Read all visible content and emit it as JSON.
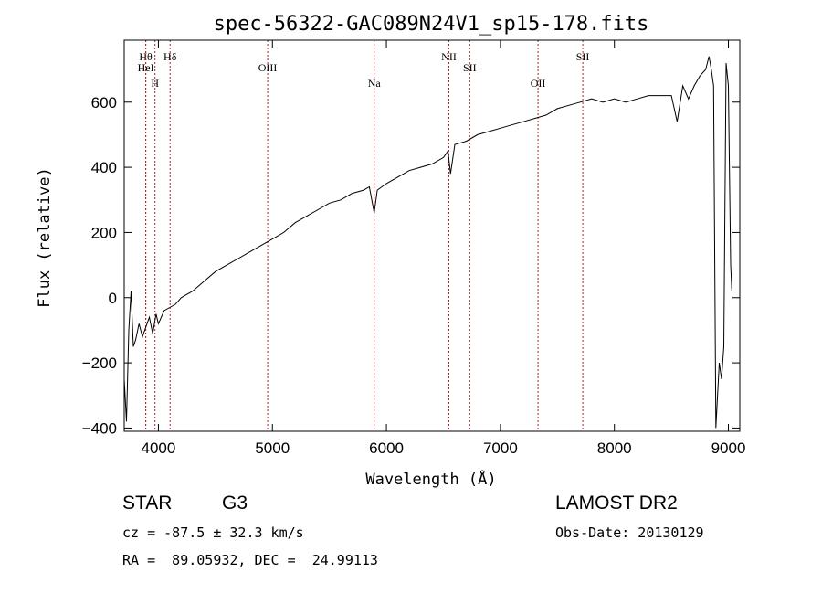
{
  "chart_data": {
    "type": "line",
    "title": "spec-56322-GAC089N24V1_sp15-178.fits",
    "xlabel": "Wavelength (Å)",
    "ylabel": "Flux (relative)",
    "xlim": [
      3700,
      9100
    ],
    "ylim": [
      -410,
      790
    ],
    "x_ticks": [
      4000,
      5000,
      6000,
      7000,
      8000,
      9000
    ],
    "y_ticks": [
      -400,
      -200,
      0,
      200,
      400,
      600
    ],
    "grid": false,
    "line_color": "#000000",
    "marker_color": "#b22222",
    "spectral_lines": [
      {
        "label": "Hθ",
        "wavelength": 3889
      },
      {
        "label": "HeI",
        "wavelength": 3889
      },
      {
        "label": "H",
        "wavelength": 3970
      },
      {
        "label": "Hδ",
        "wavelength": 4102
      },
      {
        "label": "OIII",
        "wavelength": 4959
      },
      {
        "label": "Na",
        "wavelength": 5893
      },
      {
        "label": "NII",
        "wavelength": 6548
      },
      {
        "label": "SII",
        "wavelength": 6731
      },
      {
        "label": "OII",
        "wavelength": 7330
      },
      {
        "label": "SII",
        "wavelength": 7723
      }
    ],
    "series": [
      {
        "x": [
          3700,
          3720,
          3740,
          3760,
          3780,
          3800,
          3830,
          3860,
          3890,
          3920,
          3950,
          3980,
          4000,
          4050,
          4100,
          4150,
          4200,
          4250,
          4300,
          4400,
          4500,
          4600,
          4700,
          4800,
          4900,
          5000,
          5100,
          5200,
          5300,
          5400,
          5500,
          5600,
          5700,
          5800,
          5850,
          5893,
          5920,
          6000,
          6100,
          6200,
          6300,
          6400,
          6500,
          6540,
          6563,
          6600,
          6700,
          6800,
          6900,
          7000,
          7100,
          7200,
          7300,
          7400,
          7500,
          7600,
          7700,
          7800,
          7900,
          8000,
          8100,
          8200,
          8300,
          8400,
          8500,
          8550,
          8600,
          8650,
          8700,
          8750,
          8800,
          8830,
          8850,
          8870,
          8890,
          8920,
          8940,
          8960,
          8980,
          9000,
          9020,
          9030
        ],
        "y": [
          -250,
          -380,
          -100,
          20,
          -150,
          -130,
          -80,
          -120,
          -90,
          -60,
          -110,
          -50,
          -80,
          -40,
          -30,
          -20,
          0,
          10,
          20,
          50,
          80,
          100,
          120,
          140,
          160,
          180,
          200,
          230,
          250,
          270,
          290,
          300,
          320,
          330,
          340,
          260,
          330,
          350,
          370,
          390,
          400,
          410,
          430,
          450,
          380,
          470,
          480,
          500,
          510,
          520,
          530,
          540,
          550,
          560,
          580,
          590,
          600,
          610,
          600,
          610,
          600,
          610,
          620,
          620,
          620,
          540,
          650,
          610,
          650,
          680,
          700,
          740,
          700,
          650,
          -400,
          -200,
          -250,
          -150,
          720,
          650,
          100,
          20
        ]
      }
    ]
  },
  "info": {
    "object_type": "STAR",
    "subclass": "G3",
    "survey": "LAMOST DR2",
    "cz": "cz = -87.5 ± 32.3 km/s",
    "obs_date": "Obs-Date: 20130129",
    "coords": "RA =  89.05932, DEC =  24.99113"
  }
}
